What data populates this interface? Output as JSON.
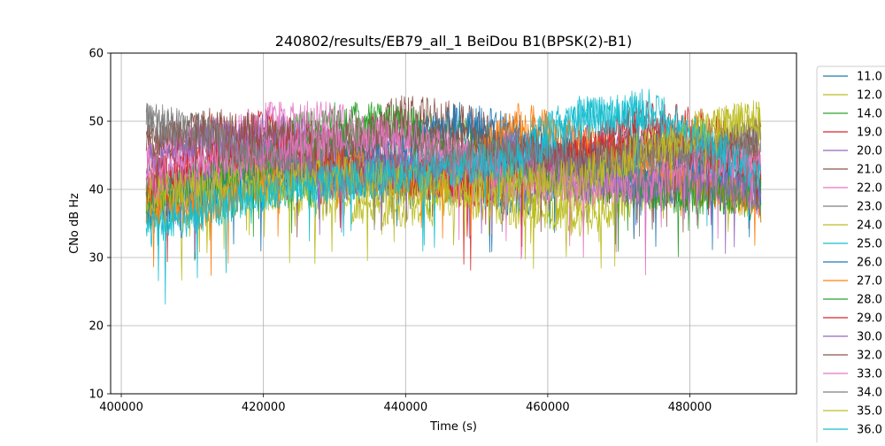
{
  "chart_data": {
    "type": "line",
    "title": "240802/results/EB79_all_1 BeiDou B1(BPSK(2)-B1)",
    "xlabel": "Time (s)",
    "ylabel": "CNo dB Hz",
    "xlim": [
      398500,
      495000
    ],
    "ylim": [
      10,
      60
    ],
    "x_ticks": [
      400000,
      420000,
      440000,
      460000,
      480000
    ],
    "x_tick_labels": [
      "400000",
      "420000",
      "440000",
      "460000",
      "480000"
    ],
    "y_ticks": [
      10,
      20,
      30,
      40,
      50,
      60
    ],
    "y_tick_labels": [
      "10",
      "20",
      "30",
      "40",
      "50",
      "60"
    ],
    "grid": true,
    "legend_position": "right",
    "series": [
      {
        "name": "11.0",
        "color": "#1f77b4",
        "x": [
          403500,
          412000,
          421000,
          430000,
          439000,
          447000,
          456000,
          465000,
          474000,
          482000,
          490000
        ],
        "y": [
          39,
          41,
          45,
          43,
          40,
          42,
          38,
          44,
          40,
          42,
          39
        ]
      },
      {
        "name": "12.0",
        "color": "#bcbd22",
        "x": [
          403500,
          412000,
          421000,
          430000,
          439000,
          447000,
          456000,
          465000,
          474000,
          482000,
          490000
        ],
        "y": [
          37,
          38,
          40,
          38,
          37,
          39,
          37,
          36,
          39,
          41,
          38
        ]
      },
      {
        "name": "14.0",
        "color": "#2ca02c",
        "x": [
          403500,
          412000,
          421000,
          430000,
          439000,
          447000,
          456000,
          465000,
          474000,
          482000,
          490000
        ],
        "y": [
          40,
          41,
          47,
          50,
          50,
          48,
          46,
          44,
          41,
          40,
          38
        ]
      },
      {
        "name": "19.0",
        "color": "#d62728",
        "x": [
          403500,
          412000,
          421000,
          430000,
          439000,
          447000,
          456000,
          465000,
          474000,
          482000,
          490000
        ],
        "y": [
          42,
          48,
          49,
          46,
          44,
          40,
          41,
          46,
          50,
          49,
          44
        ]
      },
      {
        "name": "20.0",
        "color": "#9467bd",
        "x": [
          403500,
          412000,
          421000,
          430000,
          439000,
          447000,
          456000,
          465000,
          474000,
          482000,
          490000
        ],
        "y": [
          38,
          44,
          49,
          46,
          42,
          41,
          44,
          47,
          45,
          42,
          40
        ]
      },
      {
        "name": "21.0",
        "color": "#8c564b",
        "x": [
          403500,
          412000,
          421000,
          430000,
          439000,
          447000,
          456000,
          465000,
          474000,
          482000,
          490000
        ],
        "y": [
          48,
          46,
          43,
          45,
          51,
          50,
          47,
          43,
          41,
          44,
          49
        ]
      },
      {
        "name": "22.0",
        "color": "#e377c2",
        "x": [
          403500,
          412000,
          421000,
          430000,
          439000,
          447000,
          456000,
          465000,
          474000,
          482000,
          490000
        ],
        "y": [
          45,
          47,
          50,
          50,
          47,
          44,
          41,
          40,
          45,
          46,
          42
        ]
      },
      {
        "name": "23.0",
        "color": "#7f7f7f",
        "x": [
          403500,
          412000,
          421000,
          430000,
          439000,
          447000,
          456000,
          465000,
          474000,
          482000,
          490000
        ],
        "y": [
          50,
          48,
          45,
          44,
          46,
          45,
          43,
          44,
          46,
          47,
          46
        ]
      },
      {
        "name": "24.0",
        "color": "#bcbd22",
        "x": [
          403500,
          412000,
          421000,
          430000,
          439000,
          447000,
          456000,
          465000,
          474000,
          482000,
          490000
        ],
        "y": [
          39,
          40,
          42,
          41,
          40,
          41,
          39,
          38,
          44,
          49,
          50
        ]
      },
      {
        "name": "25.0",
        "color": "#17becf",
        "x": [
          403500,
          412000,
          421000,
          430000,
          439000,
          447000,
          456000,
          465000,
          474000,
          482000,
          490000
        ],
        "y": [
          36,
          38,
          40,
          41,
          42,
          43,
          47,
          51,
          50,
          45,
          41
        ]
      },
      {
        "name": "26.0",
        "color": "#1f77b4",
        "x": [
          403500,
          412000,
          421000,
          430000,
          439000,
          447000,
          456000,
          465000,
          474000,
          482000,
          490000
        ],
        "y": [
          37,
          40,
          42,
          44,
          46,
          50,
          48,
          44,
          41,
          43,
          40
        ]
      },
      {
        "name": "27.0",
        "color": "#ff7f0e",
        "x": [
          403500,
          412000,
          421000,
          430000,
          439000,
          447000,
          456000,
          465000,
          474000,
          482000,
          490000
        ],
        "y": [
          38,
          37,
          42,
          44,
          41,
          42,
          50,
          47,
          43,
          40,
          38
        ]
      },
      {
        "name": "28.0",
        "color": "#2ca02c",
        "x": [
          403500,
          412000,
          421000,
          430000,
          439000,
          447000,
          456000,
          465000,
          474000,
          482000,
          490000
        ],
        "y": [
          39,
          42,
          44,
          47,
          50,
          45,
          43,
          41,
          40,
          39,
          40
        ]
      },
      {
        "name": "29.0",
        "color": "#d62728",
        "x": [
          403500,
          412000,
          421000,
          430000,
          439000,
          447000,
          456000,
          465000,
          474000,
          482000,
          490000
        ],
        "y": [
          40,
          45,
          46,
          43,
          42,
          41,
          44,
          45,
          48,
          46,
          42
        ]
      },
      {
        "name": "30.0",
        "color": "#9467bd",
        "x": [
          403500,
          412000,
          421000,
          430000,
          439000,
          447000,
          456000,
          465000,
          474000,
          482000,
          490000
        ],
        "y": [
          44,
          48,
          46,
          41,
          43,
          44,
          46,
          42,
          40,
          41,
          39
        ]
      },
      {
        "name": "32.0",
        "color": "#8c564b",
        "x": [
          403500,
          412000,
          421000,
          430000,
          439000,
          447000,
          456000,
          465000,
          474000,
          482000,
          490000
        ],
        "y": [
          47,
          49,
          48,
          47,
          49,
          47,
          45,
          44,
          46,
          45,
          47
        ]
      },
      {
        "name": "33.0",
        "color": "#e377c2",
        "x": [
          403500,
          412000,
          421000,
          430000,
          439000,
          447000,
          456000,
          465000,
          474000,
          482000,
          490000
        ],
        "y": [
          41,
          43,
          45,
          47,
          48,
          45,
          42,
          40,
          41,
          44,
          43
        ]
      },
      {
        "name": "34.0",
        "color": "#7f7f7f",
        "x": [
          403500,
          412000,
          421000,
          430000,
          439000,
          447000,
          456000,
          465000,
          474000,
          482000,
          490000
        ],
        "y": [
          50,
          48,
          44,
          42,
          43,
          44,
          45,
          44,
          45,
          46,
          48
        ]
      },
      {
        "name": "35.0",
        "color": "#bcbd22",
        "x": [
          403500,
          412000,
          421000,
          430000,
          439000,
          447000,
          456000,
          465000,
          474000,
          482000,
          490000
        ],
        "y": [
          39,
          40,
          41,
          42,
          41,
          40,
          41,
          42,
          46,
          49,
          51
        ]
      },
      {
        "name": "36.0",
        "color": "#17becf",
        "x": [
          403500,
          412000,
          421000,
          430000,
          439000,
          447000,
          456000,
          465000,
          474000,
          482000,
          490000
        ],
        "y": [
          34,
          37,
          40,
          41,
          42,
          43,
          45,
          50,
          52,
          47,
          42
        ]
      }
    ]
  }
}
